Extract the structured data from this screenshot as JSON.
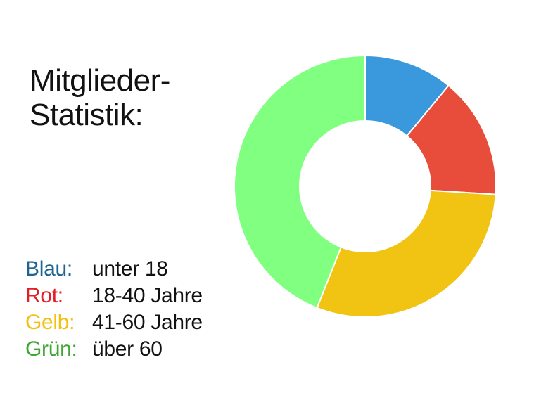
{
  "title_lines": [
    "Mitglieder-",
    "Statistik:"
  ],
  "legend": [
    {
      "key": "Blau:",
      "desc": "unter 18",
      "color": "#1f6491"
    },
    {
      "key": "Rot:",
      "desc": "18-40 Jahre",
      "color": "#e31e24"
    },
    {
      "key": "Gelb:",
      "desc": "41-60 Jahre",
      "color": "#f2c110"
    },
    {
      "key": "Grün:",
      "desc": "über 60",
      "color": "#3fa535"
    }
  ],
  "chart_data": {
    "type": "pie",
    "variant": "donut",
    "title": "Mitglieder-Statistik:",
    "categories": [
      "unter 18",
      "18-40 Jahre",
      "41-60 Jahre",
      "über 60"
    ],
    "values": [
      11,
      15,
      30,
      44
    ],
    "unit": "%",
    "colors": [
      "#3a99dc",
      "#e84d3c",
      "#f1c413",
      "#80ff80"
    ],
    "start_angle_deg": 0,
    "direction": "clockwise",
    "legend_position": "left"
  }
}
